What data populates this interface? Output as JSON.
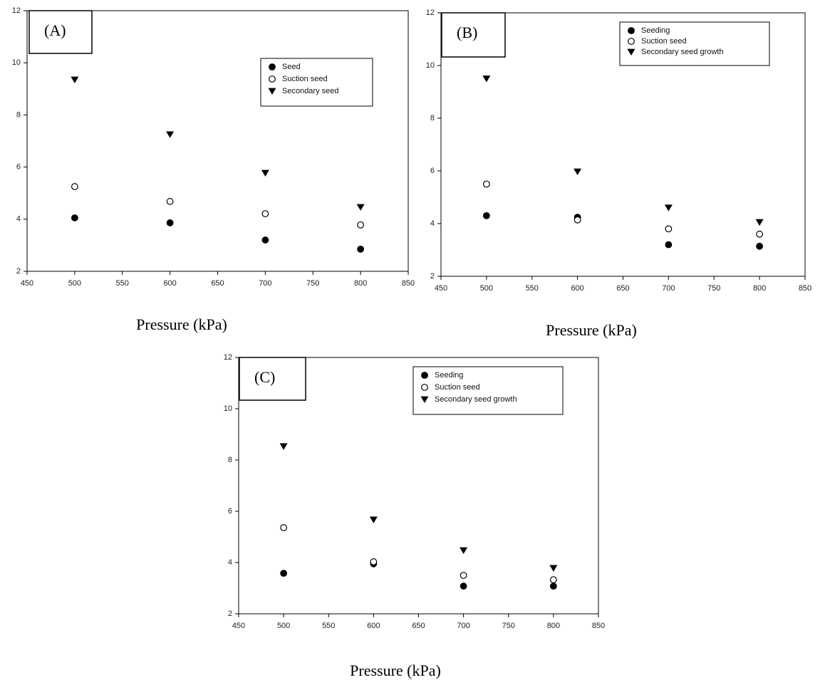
{
  "chart_data": [
    {
      "type": "scatter",
      "panel_label": "(A)",
      "xlabel": "Pressure (kPa)",
      "x": [
        500,
        600,
        700,
        800
      ],
      "series": [
        {
          "name": "Seed",
          "marker": "circle-filled",
          "color": "#000000",
          "values": [
            4.05,
            3.86,
            3.2,
            2.85
          ]
        },
        {
          "name": "Suction seed",
          "marker": "circle-open",
          "color": "#000000",
          "values": [
            5.25,
            4.68,
            4.21,
            3.78
          ]
        },
        {
          "name": "Secondary seed",
          "marker": "triangle-down",
          "color": "#000000",
          "values": [
            9.35,
            7.25,
            5.77,
            4.46
          ]
        }
      ],
      "xlim": [
        450,
        850
      ],
      "xticks": [
        450,
        500,
        550,
        600,
        650,
        700,
        750,
        800,
        850
      ],
      "ylim": [
        2,
        12
      ],
      "yticks": [
        2,
        4,
        6,
        8,
        10,
        12
      ],
      "legend": "upper right",
      "grid": false
    },
    {
      "type": "scatter",
      "panel_label": "(B)",
      "xlabel": "Pressure (kPa)",
      "x": [
        500,
        600,
        700,
        800
      ],
      "series": [
        {
          "name": "Seeding",
          "marker": "circle-filled",
          "color": "#000000",
          "values": [
            4.3,
            4.24,
            3.2,
            3.14
          ]
        },
        {
          "name": "Suction seed",
          "marker": "circle-open",
          "color": "#000000",
          "values": [
            5.5,
            4.14,
            3.8,
            3.6
          ]
        },
        {
          "name": "Secondary seed growth",
          "marker": "triangle-down",
          "color": "#000000",
          "values": [
            9.5,
            5.97,
            4.6,
            4.05
          ]
        }
      ],
      "xlim": [
        450,
        850
      ],
      "xticks": [
        450,
        500,
        550,
        600,
        650,
        700,
        750,
        800,
        850
      ],
      "ylim": [
        2,
        12
      ],
      "yticks": [
        2,
        4,
        6,
        8,
        10,
        12
      ],
      "legend": "upper right",
      "grid": false
    },
    {
      "type": "scatter",
      "panel_label": "(C)",
      "xlabel": "Pressure (kPa)",
      "x": [
        500,
        600,
        700,
        800
      ],
      "series": [
        {
          "name": "Seeding",
          "marker": "circle-filled",
          "color": "#000000",
          "values": [
            3.58,
            3.95,
            3.08,
            3.08
          ]
        },
        {
          "name": "Suction seed",
          "marker": "circle-open",
          "color": "#000000",
          "values": [
            5.36,
            4.03,
            3.5,
            3.33
          ]
        },
        {
          "name": "Secondary seed growth",
          "marker": "triangle-down",
          "color": "#000000",
          "values": [
            8.53,
            5.67,
            4.47,
            3.78
          ]
        }
      ],
      "xlim": [
        450,
        850
      ],
      "xticks": [
        450,
        500,
        550,
        600,
        650,
        700,
        750,
        800,
        850
      ],
      "ylim": [
        2,
        12
      ],
      "yticks": [
        2,
        4,
        6,
        8,
        10,
        12
      ],
      "legend": "upper right",
      "grid": false
    }
  ]
}
